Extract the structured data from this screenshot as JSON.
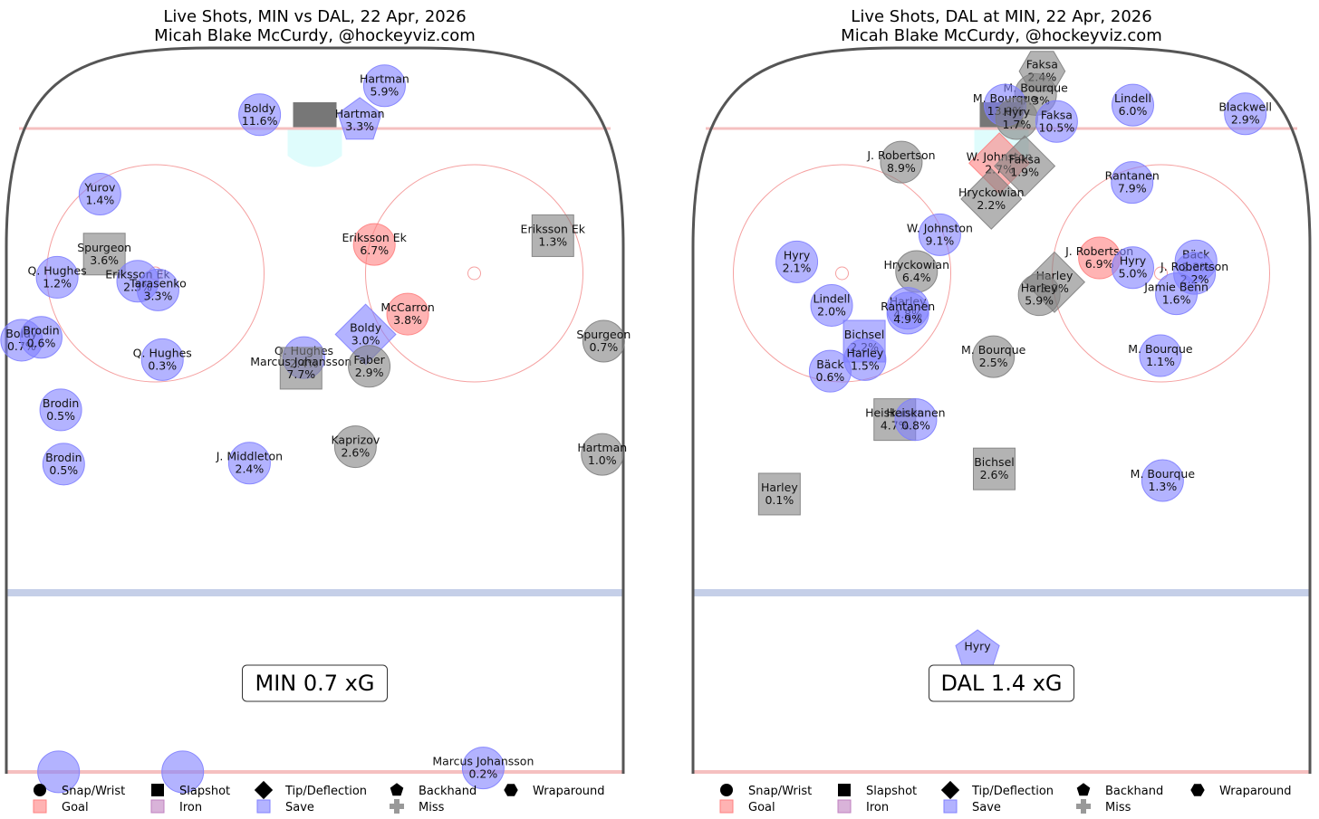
{
  "colors": {
    "save": "#8080ff",
    "goal": "#ff8080",
    "miss": "#808080",
    "iron": "#c080c0",
    "rink_line": "#555555",
    "goal_line": "#f5c0c0",
    "circle": "#f5a0a0",
    "blue_line": "#c5cfe8",
    "crease": "#dffcfc",
    "net": "#777777"
  },
  "legend": {
    "shapes": [
      {
        "icon": "circle",
        "label": "Snap/Wrist"
      },
      {
        "icon": "square",
        "label": "Slapshot"
      },
      {
        "icon": "diamond",
        "label": "Tip/Deflection"
      },
      {
        "icon": "pentagon",
        "label": "Backhand"
      },
      {
        "icon": "hexagon",
        "label": "Wraparound"
      }
    ],
    "outcomes": [
      {
        "icon": "goal",
        "label": "Goal"
      },
      {
        "icon": "iron",
        "label": "Iron"
      },
      {
        "icon": "save",
        "label": "Save"
      },
      {
        "icon": "miss",
        "label": "Miss"
      }
    ]
  },
  "chart_data": [
    {
      "type": "scatter",
      "title": "Live Shots, MIN vs DAL, 22 Apr, 2026",
      "subtitle": "Micah Blake McCurdy, @hockeyviz.com",
      "xg_label": "MIN 0.7 xG",
      "x_range": [
        -42.5,
        42.5
      ],
      "y_range": [
        25,
        100
      ],
      "shots": [
        {
          "name": "Hartman",
          "xg": "5.9%",
          "x": 9.6,
          "y": 96.1,
          "shape": "circle",
          "outcome": "save"
        },
        {
          "name": "Boldy",
          "xg": "11.6%",
          "x": -7.6,
          "y": 93.1,
          "shape": "circle",
          "outcome": "save"
        },
        {
          "name": "Hartman",
          "xg": "3.3%",
          "x": 6.2,
          "y": 92.5,
          "shape": "pentagon",
          "outcome": "save"
        },
        {
          "name": "Yurov",
          "xg": "1.4%",
          "x": -29.6,
          "y": 84.9,
          "shape": "circle",
          "outcome": "save"
        },
        {
          "name": "Spurgeon",
          "xg": "3.6%",
          "x": -29.0,
          "y": 78.7,
          "shape": "square",
          "outcome": "miss"
        },
        {
          "name": "Eriksson Ek",
          "xg": "6.7%",
          "x": 8.2,
          "y": 79.7,
          "shape": "circle",
          "outcome": "goal"
        },
        {
          "name": "Eriksson Ek",
          "xg": "1.3%",
          "x": 32.8,
          "y": 80.6,
          "shape": "square",
          "outcome": "miss"
        },
        {
          "name": "Q. Hughes",
          "xg": "1.2%",
          "x": -35.5,
          "y": 76.3,
          "shape": "circle",
          "outcome": "save"
        },
        {
          "name": "Eriksson Ek",
          "xg": "2.3%",
          "x": -24.4,
          "y": 75.9,
          "shape": "circle",
          "outcome": "save"
        },
        {
          "name": "Tarasenko",
          "xg": "3.3%",
          "x": -21.6,
          "y": 75.0,
          "shape": "circle",
          "outcome": "save"
        },
        {
          "name": "McCarron",
          "xg": "3.8%",
          "x": 12.8,
          "y": 72.5,
          "shape": "circle",
          "outcome": "goal"
        },
        {
          "name": "Boldy",
          "xg": "0.7%",
          "x": -40.4,
          "y": 69.8,
          "shape": "circle",
          "outcome": "save"
        },
        {
          "name": "Brodin",
          "xg": "0.6%",
          "x": -37.7,
          "y": 70.1,
          "shape": "circle",
          "outcome": "save"
        },
        {
          "name": "Boldy",
          "xg": "3.0%",
          "x": 7.0,
          "y": 70.4,
          "shape": "diamond",
          "outcome": "save"
        },
        {
          "name": "Spurgeon",
          "xg": "0.7%",
          "x": 39.8,
          "y": 69.7,
          "shape": "circle",
          "outcome": "miss"
        },
        {
          "name": "Q. Hughes",
          "xg": "0.3%",
          "x": -21.0,
          "y": 67.8,
          "shape": "circle",
          "outcome": "save"
        },
        {
          "name": "Q. Hughes",
          "xg": "2.4%",
          "x": -1.5,
          "y": 68.0,
          "shape": "circle",
          "outcome": "save"
        },
        {
          "name": "Marcus Johansson",
          "xg": "7.7%",
          "x": -1.9,
          "y": 66.9,
          "shape": "square",
          "outcome": "miss"
        },
        {
          "name": "Faber",
          "xg": "2.9%",
          "x": 7.5,
          "y": 67.1,
          "shape": "circle",
          "outcome": "miss"
        },
        {
          "name": "Brodin",
          "xg": "0.5%",
          "x": -35.0,
          "y": 62.6,
          "shape": "circle",
          "outcome": "save"
        },
        {
          "name": "Kaprizov",
          "xg": "2.6%",
          "x": 5.6,
          "y": 58.8,
          "shape": "circle",
          "outcome": "miss"
        },
        {
          "name": "Hartman",
          "xg": "1.0%",
          "x": 39.6,
          "y": 58.0,
          "shape": "circle",
          "outcome": "miss"
        },
        {
          "name": "J. Middleton",
          "xg": "2.4%",
          "x": -9.0,
          "y": 57.1,
          "shape": "circle",
          "outcome": "save"
        },
        {
          "name": "Brodin",
          "xg": "0.5%",
          "x": -34.6,
          "y": 57.0,
          "shape": "circle",
          "outcome": "save"
        },
        {
          "name": "",
          "xg": "",
          "x": -35.3,
          "y": 25.2,
          "shape": "circle",
          "outcome": "save"
        },
        {
          "name": "",
          "xg": "",
          "x": -18.2,
          "y": 25.2,
          "shape": "circle",
          "outcome": "save"
        },
        {
          "name": "Marcus Johansson",
          "xg": "0.2%",
          "x": 23.2,
          "y": 25.6,
          "shape": "circle",
          "outcome": "save"
        }
      ]
    },
    {
      "type": "scatter",
      "title": "Live Shots, DAL at MIN, 22 Apr, 2026",
      "subtitle": "Micah Blake McCurdy, @hockeyviz.com",
      "xg_label": "DAL 1.4 xG",
      "x_range": [
        -42.5,
        42.5
      ],
      "y_range": [
        25,
        100
      ],
      "shots": [
        {
          "name": "Faksa",
          "xg": "2.4%",
          "x": 5.6,
          "y": 97.6,
          "shape": "hexagon",
          "outcome": "miss"
        },
        {
          "name": "M. Bourque",
          "xg": "7.3%",
          "x": 4.7,
          "y": 95.2,
          "shape": "circle",
          "outcome": "miss"
        },
        {
          "name": "M. Bourque",
          "xg": "13.0%",
          "x": 0.5,
          "y": 94.1,
          "shape": "circle",
          "outcome": "save"
        },
        {
          "name": "Hyry",
          "xg": "1.7%",
          "x": 2.1,
          "y": 92.7,
          "shape": "circle",
          "outcome": "miss"
        },
        {
          "name": "Faksa",
          "xg": "10.5%",
          "x": 7.6,
          "y": 92.4,
          "shape": "circle",
          "outcome": "save"
        },
        {
          "name": "Lindell",
          "xg": "6.0%",
          "x": 18.1,
          "y": 94.1,
          "shape": "circle",
          "outcome": "save"
        },
        {
          "name": "Blackwell",
          "xg": "2.9%",
          "x": 33.6,
          "y": 93.2,
          "shape": "circle",
          "outcome": "save"
        },
        {
          "name": "J. Robertson",
          "xg": "8.9%",
          "x": -13.8,
          "y": 88.2,
          "shape": "circle",
          "outcome": "miss"
        },
        {
          "name": "W. Johnston",
          "xg": "2.7%",
          "x": -0.3,
          "y": 88.1,
          "shape": "diamond",
          "outcome": "goal"
        },
        {
          "name": "Faksa",
          "xg": "1.9%",
          "x": 3.2,
          "y": 87.8,
          "shape": "diamond",
          "outcome": "miss"
        },
        {
          "name": "Hryckowian",
          "xg": "2.2%",
          "x": -1.4,
          "y": 84.4,
          "shape": "diamond",
          "outcome": "miss"
        },
        {
          "name": "Rantanen",
          "xg": "7.9%",
          "x": 18.0,
          "y": 86.1,
          "shape": "circle",
          "outcome": "save"
        },
        {
          "name": "W. Johnston",
          "xg": "9.1%",
          "x": -8.5,
          "y": 80.7,
          "shape": "circle",
          "outcome": "save"
        },
        {
          "name": "Hyry",
          "xg": "2.1%",
          "x": -28.2,
          "y": 77.9,
          "shape": "circle",
          "outcome": "save"
        },
        {
          "name": "J. Robertson",
          "xg": "6.9%",
          "x": 13.5,
          "y": 78.3,
          "shape": "circle",
          "outcome": "goal"
        },
        {
          "name": "Hyry",
          "xg": "5.0%",
          "x": 18.1,
          "y": 77.3,
          "shape": "circle",
          "outcome": "save"
        },
        {
          "name": "Bäck",
          "xg": "2.3%",
          "x": 26.8,
          "y": 78.0,
          "shape": "circle",
          "outcome": "save"
        },
        {
          "name": "J. Robertson",
          "xg": "2.2%",
          "x": 26.6,
          "y": 76.7,
          "shape": "circle",
          "outcome": "save"
        },
        {
          "name": "Hryckowian",
          "xg": "6.4%",
          "x": -11.7,
          "y": 76.9,
          "shape": "circle",
          "outcome": "miss"
        },
        {
          "name": "Harley",
          "xg": "3.0%",
          "x": 7.3,
          "y": 75.8,
          "shape": "diamond",
          "outcome": "miss"
        },
        {
          "name": "Jamie Benn",
          "xg": "1.6%",
          "x": 24.1,
          "y": 74.6,
          "shape": "circle",
          "outcome": "save"
        },
        {
          "name": "Harley",
          "xg": "5.9%",
          "x": 5.2,
          "y": 74.5,
          "shape": "circle",
          "outcome": "miss"
        },
        {
          "name": "Lindell",
          "xg": "2.0%",
          "x": -23.4,
          "y": 73.4,
          "shape": "circle",
          "outcome": "save"
        },
        {
          "name": "Harley",
          "xg": "4.8%",
          "x": -12.9,
          "y": 73.1,
          "shape": "circle",
          "outcome": "save"
        },
        {
          "name": "Rantanen",
          "xg": "4.9%",
          "x": -12.9,
          "y": 72.6,
          "shape": "circle",
          "outcome": "save"
        },
        {
          "name": "Bichsel",
          "xg": "2.2%",
          "x": -18.9,
          "y": 69.7,
          "shape": "square",
          "outcome": "save"
        },
        {
          "name": "Harley",
          "xg": "1.5%",
          "x": -18.8,
          "y": 67.8,
          "shape": "circle",
          "outcome": "save"
        },
        {
          "name": "Bäck",
          "xg": "0.6%",
          "x": -23.6,
          "y": 66.6,
          "shape": "circle",
          "outcome": "save"
        },
        {
          "name": "M. Bourque",
          "xg": "2.5%",
          "x": -1.1,
          "y": 68.1,
          "shape": "circle",
          "outcome": "miss"
        },
        {
          "name": "M. Bourque",
          "xg": "1.1%",
          "x": 21.9,
          "y": 68.2,
          "shape": "circle",
          "outcome": "save"
        },
        {
          "name": "Heiskanen",
          "xg": "4.7%",
          "x": -14.7,
          "y": 61.6,
          "shape": "square",
          "outcome": "miss"
        },
        {
          "name": "Heiskanen",
          "xg": "0.8%",
          "x": -11.8,
          "y": 61.6,
          "shape": "circle",
          "outcome": "save"
        },
        {
          "name": "Bichsel",
          "xg": "2.6%",
          "x": -1.0,
          "y": 56.5,
          "shape": "square",
          "outcome": "miss"
        },
        {
          "name": "M. Bourque",
          "xg": "1.3%",
          "x": 22.2,
          "y": 55.3,
          "shape": "circle",
          "outcome": "save"
        },
        {
          "name": "Harley",
          "xg": "0.1%",
          "x": -30.6,
          "y": 53.9,
          "shape": "square",
          "outcome": "miss"
        },
        {
          "name": "Hyry",
          "xg": "",
          "x": -3.3,
          "y": 37.5,
          "shape": "pentagon",
          "outcome": "save"
        }
      ]
    }
  ]
}
